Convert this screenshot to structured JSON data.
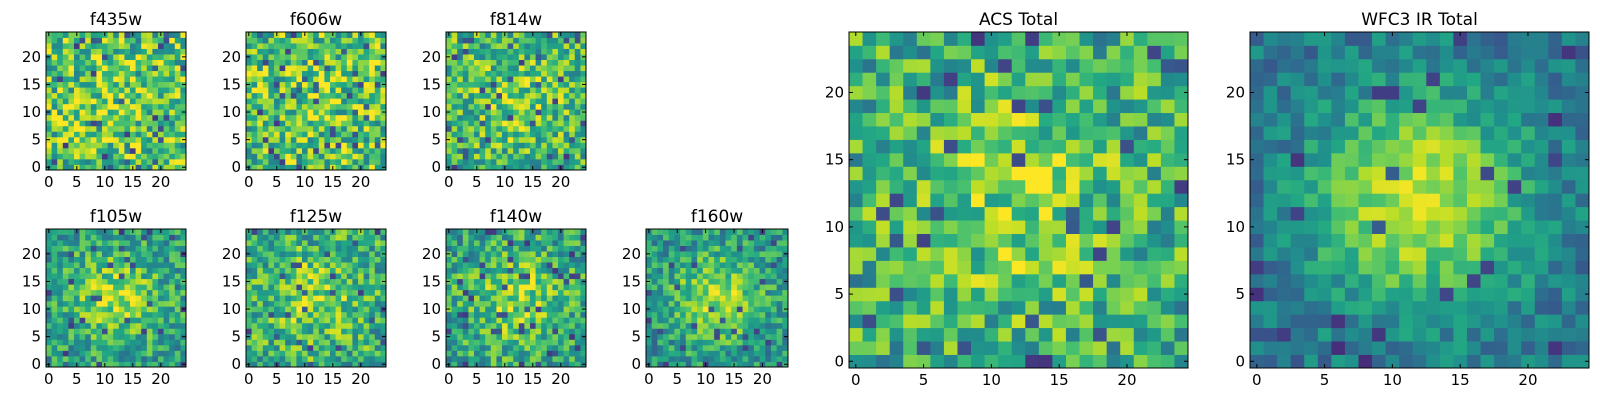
{
  "chart_data": {
    "type": "heatmap",
    "colormap": "viridis",
    "grid": false,
    "panels": [
      {
        "title": "f435w",
        "xlim": [
          0,
          24
        ],
        "ylim": [
          0,
          24
        ],
        "xticks": [
          0,
          5,
          10,
          15,
          20
        ],
        "yticks": [
          0,
          5,
          10,
          15,
          20
        ],
        "size": 25,
        "seed": 11,
        "center_peak": 0.05,
        "noise": 0.95
      },
      {
        "title": "f606w",
        "xlim": [
          0,
          24
        ],
        "ylim": [
          0,
          24
        ],
        "xticks": [
          0,
          5,
          10,
          15,
          20
        ],
        "yticks": [
          0,
          5,
          10,
          15,
          20
        ],
        "size": 25,
        "seed": 23,
        "center_peak": 0.05,
        "noise": 0.95
      },
      {
        "title": "f814w",
        "xlim": [
          0,
          24
        ],
        "ylim": [
          0,
          24
        ],
        "xticks": [
          0,
          5,
          10,
          15,
          20
        ],
        "yticks": [
          0,
          5,
          10,
          15,
          20
        ],
        "size": 25,
        "seed": 37,
        "center_peak": 0.15,
        "noise": 0.85
      },
      {
        "title": "f105w",
        "xlim": [
          0,
          24
        ],
        "ylim": [
          0,
          24
        ],
        "xticks": [
          0,
          5,
          10,
          15,
          20
        ],
        "yticks": [
          0,
          5,
          10,
          15,
          20
        ],
        "size": 25,
        "seed": 41,
        "center_peak": 0.3,
        "noise": 0.7
      },
      {
        "title": "f125w",
        "xlim": [
          0,
          24
        ],
        "ylim": [
          0,
          24
        ],
        "xticks": [
          0,
          5,
          10,
          15,
          20
        ],
        "yticks": [
          0,
          5,
          10,
          15,
          20
        ],
        "size": 25,
        "seed": 53,
        "center_peak": 0.2,
        "noise": 0.8
      },
      {
        "title": "f140w",
        "xlim": [
          0,
          24
        ],
        "ylim": [
          0,
          24
        ],
        "xticks": [
          0,
          5,
          10,
          15,
          20
        ],
        "yticks": [
          0,
          5,
          10,
          15,
          20
        ],
        "size": 25,
        "seed": 67,
        "center_peak": 0.25,
        "noise": 0.75
      },
      {
        "title": "f160w",
        "xlim": [
          0,
          24
        ],
        "ylim": [
          0,
          24
        ],
        "xticks": [
          0,
          5,
          10,
          15,
          20
        ],
        "yticks": [
          0,
          5,
          10,
          15,
          20
        ],
        "size": 25,
        "seed": 79,
        "center_peak": 0.35,
        "noise": 0.65
      },
      {
        "title": "ACS Total",
        "xlim": [
          0,
          24
        ],
        "ylim": [
          0,
          24
        ],
        "xticks": [
          0,
          5,
          10,
          15,
          20
        ],
        "yticks": [
          0,
          5,
          10,
          15,
          20
        ],
        "size": 25,
        "seed": 97,
        "center_peak": 0.2,
        "noise": 0.8
      },
      {
        "title": "WFC3 IR Total",
        "xlim": [
          0,
          24
        ],
        "ylim": [
          0,
          24
        ],
        "xticks": [
          0,
          5,
          10,
          15,
          20
        ],
        "yticks": [
          0,
          5,
          10,
          15,
          20
        ],
        "size": 25,
        "seed": 113,
        "center_peak": 0.55,
        "noise": 0.45
      }
    ]
  }
}
